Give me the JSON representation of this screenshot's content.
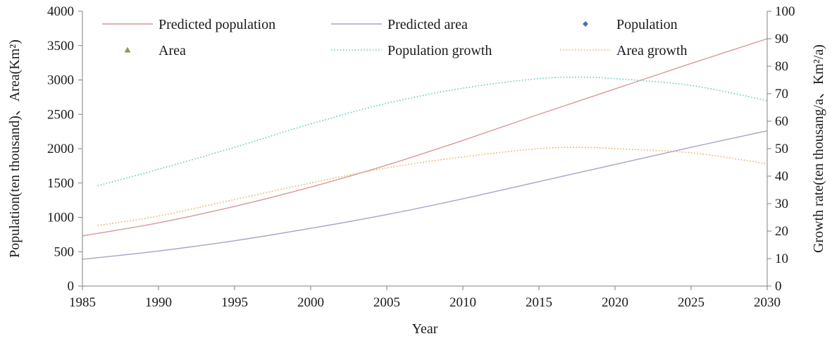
{
  "chart_data": {
    "type": "line",
    "xlabel": "Year",
    "ylabel_left": "Population(ten thousand)、Area(Km²)",
    "ylabel_right": "Growth rate(ten thousang/a、Km²/a)",
    "xlim": [
      1985,
      2030
    ],
    "ylim_left": [
      0,
      4000
    ],
    "ylim_right": [
      0,
      100
    ],
    "x_ticks": [
      "1985",
      "1990",
      "1995",
      "2000",
      "2005",
      "2010",
      "2015",
      "2020",
      "2025",
      "2030"
    ],
    "y_left_ticks": [
      "0",
      "500",
      "1000",
      "1500",
      "2000",
      "2500",
      "3000",
      "3500",
      "4000"
    ],
    "y_right_ticks": [
      "0",
      "10",
      "20",
      "30",
      "40",
      "50",
      "60",
      "70",
      "80",
      "90",
      "100"
    ],
    "grid": false,
    "legend_position": "top",
    "series": [
      {
        "name": "Predicted population",
        "axis": "left",
        "style": "solid",
        "color": "#d9989a",
        "x": [
          1985,
          1990,
          1995,
          2000,
          2005,
          2010,
          2015,
          2020,
          2025,
          2030
        ],
        "y": [
          730,
          920,
          1160,
          1440,
          1760,
          2120,
          2500,
          2870,
          3240,
          3600
        ]
      },
      {
        "name": "Predicted area",
        "axis": "left",
        "style": "solid",
        "color": "#a8a3c8",
        "x": [
          1985,
          1990,
          1995,
          2000,
          2005,
          2010,
          2015,
          2020,
          2025,
          2030
        ],
        "y": [
          390,
          510,
          660,
          840,
          1040,
          1270,
          1520,
          1770,
          2020,
          2260
        ]
      },
      {
        "name": "Population",
        "axis": "left",
        "style": "marker-diamond",
        "color": "#4a6fb5",
        "x": [],
        "y": []
      },
      {
        "name": "Area",
        "axis": "left",
        "style": "marker-triangle",
        "color": "#8c9c4e",
        "x": [],
        "y": []
      },
      {
        "name": "Population growth",
        "axis": "right",
        "style": "dotted",
        "color": "#6fc7c2",
        "x": [
          1986,
          1990,
          1995,
          2000,
          2005,
          2010,
          2015,
          2018,
          2020,
          2025,
          2030
        ],
        "y": [
          36.5,
          42.5,
          50.5,
          59,
          66.5,
          72,
          75.5,
          76,
          75.5,
          73,
          67.5
        ]
      },
      {
        "name": "Area growth",
        "axis": "right",
        "style": "dotted",
        "color": "#e8b36a",
        "x": [
          1986,
          1990,
          1995,
          2000,
          2005,
          2010,
          2015,
          2018,
          2020,
          2025,
          2030
        ],
        "y": [
          22,
          25.5,
          31.5,
          37.5,
          43,
          47,
          50,
          50.5,
          50,
          48.5,
          44.5
        ]
      }
    ]
  }
}
